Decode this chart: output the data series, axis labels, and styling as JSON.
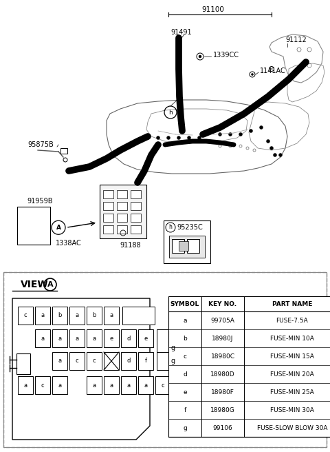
{
  "bg_color": "#ffffff",
  "table_symbols": [
    "a",
    "b",
    "c",
    "d",
    "e",
    "f",
    "g"
  ],
  "table_keynos": [
    "99705A",
    "18980J",
    "18980C",
    "18980D",
    "18980F",
    "18980G",
    "99106"
  ],
  "table_partnames": [
    "FUSE-7.5A",
    "FUSE-MIN 10A",
    "FUSE-MIN 15A",
    "FUSE-MIN 20A",
    "FUSE-MIN 25A",
    "FUSE-MIN 30A",
    "FUSE-SLOW BLOW 30A"
  ]
}
